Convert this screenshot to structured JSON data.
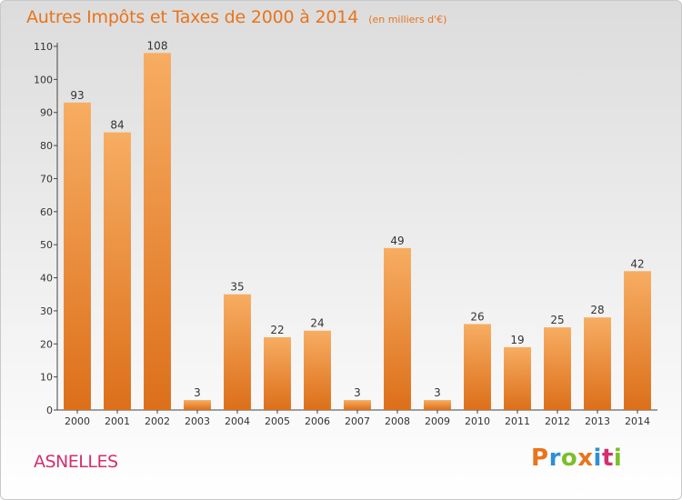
{
  "chart_data": {
    "type": "bar",
    "title": "Autres Impôts et Taxes de 2000 à 2014",
    "subtitle": "(en milliers d'€)",
    "categories": [
      "2000",
      "2001",
      "2002",
      "2003",
      "2004",
      "2005",
      "2006",
      "2007",
      "2008",
      "2009",
      "2010",
      "2011",
      "2012",
      "2013",
      "2014"
    ],
    "values": [
      93,
      84,
      108,
      3,
      35,
      22,
      24,
      3,
      49,
      3,
      26,
      19,
      25,
      28,
      42
    ],
    "ylim": [
      0,
      110
    ],
    "yticks": [
      0,
      10,
      20,
      30,
      40,
      50,
      60,
      70,
      80,
      90,
      100,
      110
    ],
    "grid": false,
    "data_labels": true,
    "bar_color": "#f0892e"
  },
  "footer": {
    "commune": "ASNELLES",
    "logo": [
      "P",
      "r",
      "o",
      "x",
      "i",
      "t",
      "i"
    ]
  },
  "colors": {
    "title": "#e8741c",
    "commune": "#d2306e",
    "bar_light": "#f7ad62",
    "bar_dark": "#dc6f1a",
    "logo": [
      "#e8741c",
      "#2f8fd6",
      "#7bbf2a",
      "#e8741c",
      "#2f8fd6",
      "#d2306e",
      "#7bbf2a"
    ]
  }
}
